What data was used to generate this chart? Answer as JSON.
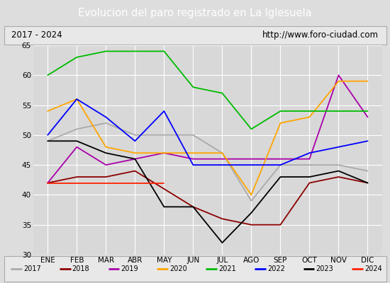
{
  "title": "Evolucion del paro registrado en La Iglesuela",
  "subtitle_left": "2017 - 2024",
  "subtitle_right": "http://www.foro-ciudad.com",
  "months": [
    "ENE",
    "FEB",
    "MAR",
    "ABR",
    "MAY",
    "JUN",
    "JUL",
    "AGO",
    "SEP",
    "OCT",
    "NOV",
    "DIC"
  ],
  "ylim": [
    30,
    65
  ],
  "yticks": [
    30,
    35,
    40,
    45,
    50,
    55,
    60,
    65
  ],
  "series": {
    "2017": {
      "color": "#aaaaaa",
      "values": [
        49,
        51,
        52,
        50,
        50,
        50,
        47,
        39,
        45,
        45,
        45,
        44
      ]
    },
    "2018": {
      "color": "#8b0000",
      "values": [
        42,
        43,
        43,
        44,
        41,
        38,
        36,
        35,
        35,
        42,
        43,
        42
      ]
    },
    "2019": {
      "color": "#aa00aa",
      "values": [
        42,
        48,
        45,
        46,
        47,
        46,
        46,
        46,
        46,
        46,
        60,
        53
      ]
    },
    "2020": {
      "color": "#ffa500",
      "values": [
        54,
        56,
        48,
        47,
        47,
        47,
        47,
        40,
        52,
        53,
        59,
        59
      ]
    },
    "2021": {
      "color": "#00bb00",
      "values": [
        60,
        63,
        64,
        64,
        64,
        58,
        57,
        51,
        54,
        54,
        54,
        54
      ]
    },
    "2022": {
      "color": "#0000ff",
      "values": [
        50,
        56,
        53,
        49,
        54,
        45,
        45,
        45,
        45,
        47,
        48,
        49
      ]
    },
    "2023": {
      "color": "#000000",
      "values": [
        49,
        49,
        47,
        46,
        38,
        38,
        32,
        37,
        43,
        43,
        44,
        42
      ]
    },
    "2024": {
      "color": "#ff2200",
      "values": [
        42,
        42,
        42,
        42,
        42,
        null,
        null,
        null,
        null,
        null,
        null,
        null
      ]
    }
  },
  "series_order": [
    "2017",
    "2018",
    "2019",
    "2020",
    "2021",
    "2022",
    "2023",
    "2024"
  ],
  "background_color": "#dddddd",
  "plot_bg_color": "#d8d8d8",
  "title_bg_color": "#5588cc",
  "title_color": "#ffffff",
  "grid_color": "#ffffff",
  "subtitle_bg": "#e8e8e8",
  "legend_bg": "#e8e8e8"
}
